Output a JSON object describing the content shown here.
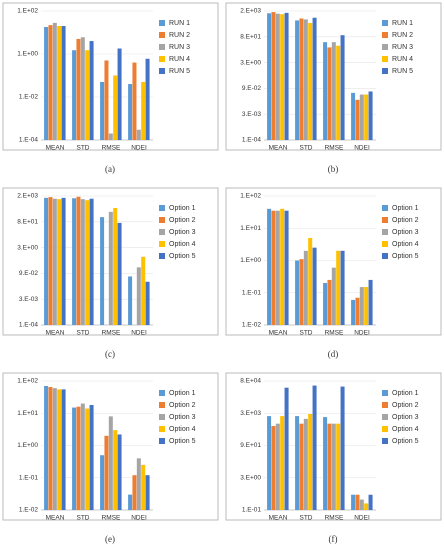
{
  "chart_data": [
    {
      "type": "bar",
      "caption": "(a)",
      "log_scale": true,
      "grid": true,
      "legend": "right",
      "categories": [
        "MEAN",
        "STD",
        "RMSE",
        "NDEI"
      ],
      "ylim": [
        0.0001,
        100
      ],
      "yticks": [
        {
          "value": 100,
          "label": "1.E+02"
        },
        {
          "value": 1,
          "label": "1.E+00"
        },
        {
          "value": 0.01,
          "label": "1.E-02"
        },
        {
          "value": 0.0001,
          "label": "1.E-04"
        }
      ],
      "series": [
        {
          "name": "RUN 1",
          "color": "#5b9bd5",
          "values": [
            18,
            1.5,
            0.05,
            0.04
          ]
        },
        {
          "name": "RUN 2",
          "color": "#ed7d31",
          "values": [
            22,
            5,
            0.5,
            0.4
          ]
        },
        {
          "name": "RUN 3",
          "color": "#a5a5a5",
          "values": [
            28,
            6,
            0.0002,
            0.0003
          ]
        },
        {
          "name": "RUN 4",
          "color": "#ffc000",
          "values": [
            20,
            1.5,
            0.1,
            0.05
          ]
        },
        {
          "name": "RUN 5",
          "color": "#4472c4",
          "values": [
            20,
            4,
            1.8,
            0.6
          ]
        }
      ]
    },
    {
      "type": "bar",
      "caption": "(b)",
      "log_scale": true,
      "grid": true,
      "legend": "right",
      "categories": [
        "MEAN",
        "STD",
        "RMSE",
        "NDEI"
      ],
      "ylim": [
        0.0001,
        2430
      ],
      "yticks": [
        {
          "value": 2430,
          "label": "2.E+03"
        },
        {
          "value": 81,
          "label": "8.E+01"
        },
        {
          "value": 2.7,
          "label": "3.E+00"
        },
        {
          "value": 0.09,
          "label": "9.E-02"
        },
        {
          "value": 0.003,
          "label": "3.E-03"
        },
        {
          "value": 0.0001,
          "label": "1.E-04"
        }
      ],
      "series": [
        {
          "name": "RUN 1",
          "color": "#5b9bd5",
          "values": [
            1800,
            700,
            40,
            0.05
          ]
        },
        {
          "name": "RUN 2",
          "color": "#ed7d31",
          "values": [
            2100,
            900,
            20,
            0.02
          ]
        },
        {
          "name": "RUN 3",
          "color": "#a5a5a5",
          "values": [
            1700,
            800,
            40,
            0.04
          ]
        },
        {
          "name": "RUN 4",
          "color": "#ffc000",
          "values": [
            1600,
            500,
            25,
            0.04
          ]
        },
        {
          "name": "RUN 5",
          "color": "#4472c4",
          "values": [
            1900,
            1000,
            100,
            0.06
          ]
        }
      ]
    },
    {
      "type": "bar",
      "caption": "(c)",
      "log_scale": true,
      "grid": true,
      "legend": "right",
      "categories": [
        "MEAN",
        "STD",
        "RMSE",
        "NDEI"
      ],
      "ylim": [
        0.0001,
        2430
      ],
      "yticks": [
        {
          "value": 2430,
          "label": "2.E+03"
        },
        {
          "value": 81,
          "label": "8.E+01"
        },
        {
          "value": 2.7,
          "label": "3.E+00"
        },
        {
          "value": 0.09,
          "label": "9.E-02"
        },
        {
          "value": 0.003,
          "label": "3.E-03"
        },
        {
          "value": 0.0001,
          "label": "1.E-04"
        }
      ],
      "series": [
        {
          "name": "Option 1",
          "color": "#5b9bd5",
          "values": [
            1900,
            1800,
            150,
            0.06
          ]
        },
        {
          "name": "Option 2",
          "color": "#ed7d31",
          "values": [
            2100,
            2200,
            null,
            null
          ]
        },
        {
          "name": "Option 3",
          "color": "#a5a5a5",
          "values": [
            1700,
            1600,
            300,
            0.2
          ]
        },
        {
          "name": "Option 4",
          "color": "#ffc000",
          "values": [
            1600,
            1400,
            500,
            0.8
          ]
        },
        {
          "name": "Option 5",
          "color": "#4472c4",
          "values": [
            1900,
            1700,
            70,
            0.03
          ]
        }
      ]
    },
    {
      "type": "bar",
      "caption": "(d)",
      "log_scale": true,
      "grid": true,
      "legend": "right",
      "categories": [
        "MEAN",
        "STD",
        "RMSE",
        "NDEI"
      ],
      "ylim": [
        0.01,
        100
      ],
      "yticks": [
        {
          "value": 100,
          "label": "1.E+02"
        },
        {
          "value": 10,
          "label": "1.E+01"
        },
        {
          "value": 1,
          "label": "1.E+00"
        },
        {
          "value": 0.1,
          "label": "1.E-01"
        },
        {
          "value": 0.01,
          "label": "1.E-02"
        }
      ],
      "series": [
        {
          "name": "Option 1",
          "color": "#5b9bd5",
          "values": [
            40,
            1.0,
            0.2,
            0.06
          ]
        },
        {
          "name": "Option 2",
          "color": "#ed7d31",
          "values": [
            35,
            1.1,
            0.25,
            0.07
          ]
        },
        {
          "name": "Option 3",
          "color": "#a5a5a5",
          "values": [
            35,
            2,
            0.6,
            0.15
          ]
        },
        {
          "name": "Option 4",
          "color": "#ffc000",
          "values": [
            40,
            5,
            2,
            0.15
          ]
        },
        {
          "name": "Option 5",
          "color": "#4472c4",
          "values": [
            35,
            2.5,
            2,
            0.25
          ]
        }
      ]
    },
    {
      "type": "bar",
      "caption": "(e)",
      "log_scale": true,
      "grid": true,
      "legend": "right",
      "categories": [
        "MEAN",
        "STD",
        "RMSE",
        "NDEI"
      ],
      "ylim": [
        0.01,
        100
      ],
      "yticks": [
        {
          "value": 100,
          "label": "1.E+02"
        },
        {
          "value": 10,
          "label": "1.E+01"
        },
        {
          "value": 1,
          "label": "1.E+00"
        },
        {
          "value": 0.1,
          "label": "1.E-01"
        },
        {
          "value": 0.01,
          "label": "1.E-02"
        }
      ],
      "series": [
        {
          "name": "Option 1",
          "color": "#5b9bd5",
          "values": [
            70,
            15,
            0.5,
            0.03
          ]
        },
        {
          "name": "Option 2",
          "color": "#ed7d31",
          "values": [
            65,
            16,
            2,
            0.12
          ]
        },
        {
          "name": "Option 3",
          "color": "#a5a5a5",
          "values": [
            60,
            20,
            8,
            0.4
          ]
        },
        {
          "name": "Option 4",
          "color": "#ffc000",
          "values": [
            55,
            14,
            3,
            0.25
          ]
        },
        {
          "name": "Option 5",
          "color": "#4472c4",
          "values": [
            55,
            18,
            2.2,
            0.12
          ]
        }
      ]
    },
    {
      "type": "bar",
      "caption": "(f)",
      "log_scale": true,
      "grid": true,
      "legend": "right",
      "categories": [
        "MEAN",
        "STD",
        "RMSE",
        "NDEI"
      ],
      "ylim": [
        0.1,
        81000
      ],
      "yticks": [
        {
          "value": 81000,
          "label": "8.E+04"
        },
        {
          "value": 2700,
          "label": "3.E+03"
        },
        {
          "value": 90,
          "label": "9.E+01"
        },
        {
          "value": 3,
          "label": "3.E+00"
        },
        {
          "value": 0.1,
          "label": "1.E-01"
        }
      ],
      "series": [
        {
          "name": "Option 1",
          "color": "#5b9bd5",
          "values": [
            2000,
            2000,
            1800,
            0.5
          ]
        },
        {
          "name": "Option 2",
          "color": "#ed7d31",
          "values": [
            700,
            900,
            900,
            0.5
          ]
        },
        {
          "name": "Option 3",
          "color": "#a5a5a5",
          "values": [
            900,
            1500,
            900,
            0.3
          ]
        },
        {
          "name": "Option 4",
          "color": "#ffc000",
          "values": [
            2000,
            2500,
            900,
            0.2
          ]
        },
        {
          "name": "Option 5",
          "color": "#4472c4",
          "values": [
            40000,
            50000,
            45000,
            0.5
          ]
        }
      ]
    }
  ]
}
